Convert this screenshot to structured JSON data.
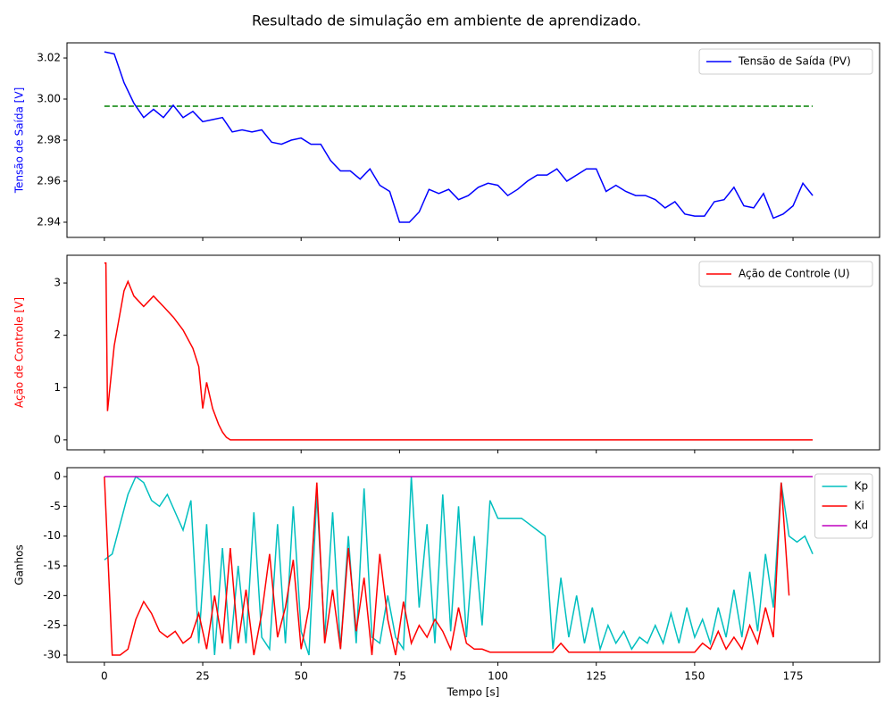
{
  "title": "Resultado de simulação em ambiente de aprendizado.",
  "chart_data": [
    {
      "type": "line",
      "ylabel": "Tensão de Saída [V]",
      "ylabel_color": "#0000ff",
      "x": [
        0,
        2.5,
        5,
        7.5,
        10,
        12.5,
        15,
        17.5,
        20,
        22.5,
        25,
        27.5,
        30,
        32.5,
        35,
        37.5,
        40,
        42.5,
        45,
        47.5,
        50,
        52.5,
        55,
        57.5,
        60,
        62.5,
        65,
        67.5,
        70,
        72.5,
        75,
        77.5,
        80,
        82.5,
        85,
        87.5,
        90,
        92.5,
        95,
        97.5,
        100,
        102.5,
        105,
        107.5,
        110,
        112.5,
        115,
        117.5,
        120,
        122.5,
        125,
        127.5,
        130,
        132.5,
        135,
        137.5,
        140,
        142.5,
        145,
        147.5,
        150,
        152.5,
        155,
        157.5,
        160,
        162.5,
        165,
        167.5,
        170,
        172.5,
        175,
        177.5,
        180
      ],
      "series": [
        {
          "name": "Tensão de Saída (PV)",
          "color": "#0000ff",
          "values": [
            3.023,
            3.022,
            3.008,
            2.998,
            2.991,
            2.995,
            2.991,
            2.997,
            2.991,
            2.994,
            2.989,
            2.99,
            2.991,
            2.984,
            2.985,
            2.984,
            2.985,
            2.979,
            2.978,
            2.98,
            2.981,
            2.978,
            2.978,
            2.97,
            2.965,
            2.965,
            2.961,
            2.966,
            2.958,
            2.955,
            2.94,
            2.94,
            2.945,
            2.956,
            2.954,
            2.956,
            2.951,
            2.953,
            2.957,
            2.959,
            2.958,
            2.953,
            2.956,
            2.96,
            2.963,
            2.963,
            2.966,
            2.96,
            2.963,
            2.966,
            2.966,
            2.955,
            2.958,
            2.955,
            2.953,
            2.953,
            2.951,
            2.947,
            2.95,
            2.944,
            2.943,
            2.943,
            2.95,
            2.951,
            2.957,
            2.948,
            2.947,
            2.954,
            2.942,
            2.944,
            2.948,
            2.959,
            2.953
          ]
        }
      ],
      "reference": {
        "value": 2.9965,
        "color": "#008000",
        "dashed": true
      },
      "ylim": [
        2.9326,
        3.0274
      ],
      "yticks": [
        2.94,
        2.96,
        2.98,
        {
          "value": 3,
          "label": "3.00"
        },
        3.02
      ],
      "legend": "upper right"
    },
    {
      "type": "line",
      "ylabel": "Ação de Controle [V]",
      "ylabel_color": "#ff0000",
      "x": [
        0,
        0.4,
        0.8,
        2.5,
        5,
        6,
        7.5,
        10,
        12.5,
        15,
        17.5,
        20,
        22.5,
        24,
        25,
        26,
        27.5,
        29,
        30,
        31,
        32,
        180
      ],
      "series": [
        {
          "name": "Ação de Controle (U)",
          "color": "#ff0000",
          "values": [
            3.38,
            3.38,
            0.55,
            1.8,
            2.85,
            3.03,
            2.75,
            2.55,
            2.75,
            2.55,
            2.35,
            2.1,
            1.75,
            1.4,
            0.6,
            1.1,
            0.6,
            0.3,
            0.15,
            0.05,
            0,
            0
          ]
        }
      ],
      "ylim": [
        -0.19,
        3.53
      ],
      "yticks": [
        0,
        1,
        2,
        3
      ],
      "legend": "upper right"
    },
    {
      "type": "line",
      "ylabel": "Ganhos",
      "xlabel": "Tempo [s]",
      "x": [
        0,
        2,
        4,
        6,
        8,
        10,
        12,
        14,
        16,
        18,
        20,
        22,
        24,
        26,
        28,
        30,
        32,
        34,
        36,
        38,
        40,
        42,
        44,
        46,
        48,
        50,
        52,
        54,
        56,
        58,
        60,
        62,
        64,
        66,
        68,
        70,
        72,
        74,
        76,
        78,
        80,
        82,
        84,
        86,
        88,
        90,
        92,
        94,
        96,
        98,
        100,
        102,
        104,
        106,
        108,
        110,
        112,
        114,
        116,
        118,
        120,
        122,
        124,
        126,
        128,
        130,
        132,
        134,
        136,
        138,
        140,
        142,
        144,
        146,
        148,
        150,
        152,
        154,
        156,
        158,
        160,
        162,
        164,
        166,
        168,
        170,
        172,
        174,
        176,
        178,
        180
      ],
      "series": [
        {
          "name": "Kp",
          "color": "#00bfbf",
          "values": [
            -14,
            -13,
            -8,
            -3,
            0,
            -1,
            -4,
            -5,
            -3,
            -6,
            -9,
            -4,
            -28,
            -8,
            -30,
            -12,
            -29,
            -15,
            -28,
            -6,
            -27,
            -29,
            -8,
            -28,
            -5,
            -26,
            -30,
            -3,
            -27,
            -6,
            -29,
            -10,
            -28,
            -2,
            -27,
            -28,
            -20,
            -27,
            -29,
            0,
            -22,
            -8,
            -28,
            -3,
            -26,
            -5,
            -27,
            -10,
            -25,
            -4,
            -7,
            -7,
            -7,
            -7,
            -8,
            -9,
            -10,
            -29,
            -17,
            -27,
            -20,
            -28,
            -22,
            -29,
            -25,
            -28,
            -26,
            -29,
            -27,
            -28,
            -25,
            -28,
            -23,
            -28,
            -22,
            -27,
            -24,
            -28,
            -22,
            -27,
            -19,
            -27,
            -16,
            -26,
            -13,
            -22,
            -1,
            -10,
            -11,
            -10,
            -13
          ]
        },
        {
          "name": "Ki",
          "color": "#ff0000",
          "values": [
            0,
            -30,
            -30,
            -29,
            -24,
            -21,
            -23,
            -26,
            -27,
            -26,
            -28,
            -27,
            -23,
            -29,
            -20,
            -28,
            -12,
            -28,
            -19,
            -30,
            -23,
            -13,
            -27,
            -22,
            -14,
            -29,
            -22,
            -1,
            -28,
            -19,
            -29,
            -12,
            -26,
            -17,
            -30,
            -13,
            -24,
            -30,
            -21,
            -28,
            -25,
            -27,
            -24,
            -26,
            -29,
            -22,
            -28,
            -29,
            -29,
            -29.5,
            -29.5,
            -29.5,
            -29.5,
            -29.5,
            -29.5,
            -29.5,
            -29.5,
            -29.5,
            -28,
            -29.5,
            -29.5,
            -29.5,
            -29.5,
            -29.5,
            -29.5,
            -29.5,
            -29.5,
            -29.5,
            -29.5,
            -29.5,
            -29.5,
            -29.5,
            -29.5,
            -29.5,
            -29.5,
            -29.5,
            -28,
            -29,
            -26,
            -29,
            -27,
            -29,
            -25,
            -28,
            -22,
            -27,
            -1,
            -20,
            null,
            null,
            null
          ]
        },
        {
          "name": "Kd",
          "color": "#bf00bf",
          "values": [
            0,
            0,
            0,
            0,
            0,
            0,
            0,
            0,
            0,
            0,
            0,
            0,
            0,
            0,
            0,
            0,
            0,
            0,
            0,
            0,
            0,
            0,
            0,
            0,
            0,
            0,
            0,
            0,
            0,
            0,
            0,
            0,
            0,
            0,
            0,
            0,
            0,
            0,
            0,
            0,
            0,
            0,
            0,
            0,
            0,
            0,
            0,
            0,
            0,
            0,
            0,
            0,
            0,
            0,
            0,
            0,
            0,
            0,
            0,
            0,
            0,
            0,
            0,
            0,
            0,
            0,
            0,
            0,
            0,
            0,
            0,
            0,
            0,
            0,
            0,
            0,
            0,
            0,
            0,
            0,
            0,
            0,
            0,
            0,
            0,
            0,
            0,
            0,
            0,
            0,
            0
          ]
        }
      ],
      "ylim": [
        -31.2,
        1.5
      ],
      "yticks": [
        0,
        -5,
        -10,
        -15,
        -20,
        -25,
        -30
      ],
      "xlim": [
        -9.5,
        197
      ],
      "xticks": [
        0,
        25,
        50,
        75,
        100,
        125,
        150,
        175
      ],
      "legend": "upper right"
    }
  ]
}
